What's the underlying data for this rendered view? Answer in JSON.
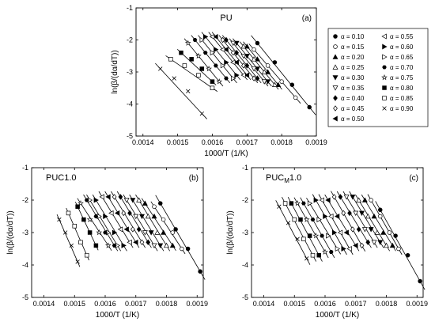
{
  "chart_data": [
    {
      "id": "a",
      "type": "scatter",
      "title": "PU",
      "panel_label": "(a)",
      "xlabel": "1000/T (1/K)",
      "ylabel": "ln(β/(dα/dT))",
      "xlim": [
        0.00138,
        0.0019
      ],
      "ylim": [
        -5,
        -1
      ],
      "xticks": [
        "0.0014",
        "0.0015",
        "0.0016",
        "0.0017",
        "0.0018",
        "0.0019"
      ],
      "yticks": [
        "-1",
        "-2",
        "-3",
        "-4",
        "-5"
      ],
      "legend_position": "right",
      "legend": [
        "α = 0.10",
        "α = 0.15",
        "α = 0.20",
        "α = 0.25",
        "α = 0.30",
        "α = 0.35",
        "α = 0.40",
        "α = 0.45",
        "α = 0.50",
        "α = 0.55",
        "α = 0.60",
        "α = 0.65",
        "α = 0.70",
        "α = 0.75",
        "α = 0.80",
        "α = 0.85",
        "α = 0.90"
      ],
      "series": [
        {
          "name": "α = 0.10",
          "marker": "circle-filled",
          "x": [
            0.00173,
            0.00178,
            0.00183,
            0.00188
          ],
          "y": [
            -2.1,
            -2.7,
            -3.4,
            -4.1
          ]
        },
        {
          "name": "α = 0.15",
          "marker": "circle-open",
          "x": [
            0.00172,
            0.00176,
            0.0018,
            0.00184
          ],
          "y": [
            -2.3,
            -2.8,
            -3.3,
            -3.8
          ]
        },
        {
          "name": "α = 0.20",
          "marker": "triangle-filled",
          "x": [
            0.0017,
            0.00173,
            0.00176,
            0.00179
          ],
          "y": [
            -2.2,
            -2.6,
            -3.0,
            -3.4
          ]
        },
        {
          "name": "α = 0.25",
          "marker": "triangle-open",
          "x": [
            0.00169,
            0.00172,
            0.00175,
            0.00178
          ],
          "y": [
            -2.2,
            -2.6,
            -3.0,
            -3.4
          ]
        },
        {
          "name": "α = 0.30",
          "marker": "tri-down-filled",
          "x": [
            0.00167,
            0.0017,
            0.00173,
            0.00176
          ],
          "y": [
            -2.1,
            -2.5,
            -2.9,
            -3.3
          ]
        },
        {
          "name": "α = 0.35",
          "marker": "tri-down-open",
          "x": [
            0.00166,
            0.00169,
            0.00172,
            0.00175
          ],
          "y": [
            -2.1,
            -2.5,
            -2.9,
            -3.3
          ]
        },
        {
          "name": "α = 0.40",
          "marker": "diamond-filled",
          "x": [
            0.00164,
            0.00167,
            0.0017,
            0.00173
          ],
          "y": [
            -2.0,
            -2.4,
            -2.8,
            -3.2
          ]
        },
        {
          "name": "α = 0.45",
          "marker": "diamond-open",
          "x": [
            0.00163,
            0.00166,
            0.00169,
            0.00172
          ],
          "y": [
            -2.0,
            -2.4,
            -2.8,
            -3.2
          ]
        },
        {
          "name": "α = 0.50",
          "marker": "tri-left-filled",
          "x": [
            0.00161,
            0.00164,
            0.00167,
            0.0017
          ],
          "y": [
            -1.9,
            -2.3,
            -2.7,
            -3.1
          ]
        },
        {
          "name": "α = 0.55",
          "marker": "tri-left-open",
          "x": [
            0.0016,
            0.00163,
            0.00166,
            0.00169
          ],
          "y": [
            -1.9,
            -2.3,
            -2.7,
            -3.1
          ]
        },
        {
          "name": "α = 0.60",
          "marker": "tri-right-filled",
          "x": [
            0.00158,
            0.00161,
            0.00164,
            0.00167
          ],
          "y": [
            -1.9,
            -2.3,
            -2.7,
            -3.1
          ]
        },
        {
          "name": "α = 0.65",
          "marker": "tri-right-open",
          "x": [
            0.00157,
            0.0016,
            0.00163,
            0.00166
          ],
          "y": [
            -2.0,
            -2.4,
            -2.8,
            -3.2
          ]
        },
        {
          "name": "α = 0.70",
          "marker": "hexagon-filled",
          "x": [
            0.00155,
            0.00158,
            0.00161,
            0.00164
          ],
          "y": [
            -2.0,
            -2.4,
            -2.8,
            -3.2
          ]
        },
        {
          "name": "α = 0.75",
          "marker": "star-open",
          "x": [
            0.00153,
            0.00156,
            0.00159,
            0.00162
          ],
          "y": [
            -2.1,
            -2.5,
            -2.9,
            -3.3
          ]
        },
        {
          "name": "α = 0.80",
          "marker": "square-filled",
          "x": [
            0.00151,
            0.00154,
            0.00157,
            0.0016
          ],
          "y": [
            -2.4,
            -2.6,
            -2.9,
            -3.3
          ]
        },
        {
          "name": "α = 0.85",
          "marker": "square-open",
          "x": [
            0.00148,
            0.00152,
            0.00156,
            0.0016
          ],
          "y": [
            -2.6,
            -2.8,
            -3.1,
            -3.5
          ]
        },
        {
          "name": "α = 0.90",
          "marker": "cross",
          "x": [
            0.00145,
            0.00149,
            0.00153,
            0.00157
          ],
          "y": [
            -2.9,
            -3.2,
            -3.6,
            -4.3
          ]
        }
      ]
    },
    {
      "id": "b",
      "type": "scatter",
      "title": "PUC1.0",
      "panel_label": "(b)",
      "xlabel": "1000/T (1/K)",
      "ylabel": "ln(β/(dα/dT))",
      "xlim": [
        0.00136,
        0.00192
      ],
      "ylim": [
        -5,
        -1
      ],
      "xticks": [
        "0.0014",
        "0.0015",
        "0.0016",
        "0.0017",
        "0.0018",
        "0.0019"
      ],
      "yticks": [
        "-1",
        "-2",
        "-3",
        "-4",
        "-5"
      ],
      "series": [
        {
          "name": "α = 0.10",
          "marker": "circle-filled",
          "x": [
            0.00178,
            0.00183,
            0.00187,
            0.00191
          ],
          "y": [
            -2.1,
            -2.9,
            -3.5,
            -4.2
          ]
        },
        {
          "name": "α = 0.15",
          "marker": "circle-open",
          "x": [
            0.00176,
            0.00179,
            0.00182,
            0.00185
          ],
          "y": [
            -2.2,
            -2.6,
            -3.0,
            -3.5
          ]
        },
        {
          "name": "α = 0.20",
          "marker": "triangle-filled",
          "x": [
            0.00173,
            0.00176,
            0.00179,
            0.00182
          ],
          "y": [
            -2.1,
            -2.5,
            -3.0,
            -3.4
          ]
        },
        {
          "name": "α = 0.25",
          "marker": "triangle-open",
          "x": [
            0.00171,
            0.00174,
            0.00177,
            0.0018
          ],
          "y": [
            -2.0,
            -2.5,
            -3.0,
            -3.4
          ]
        },
        {
          "name": "α = 0.30",
          "marker": "tri-down-filled",
          "x": [
            0.00169,
            0.00172,
            0.00175,
            0.00178
          ],
          "y": [
            -2.0,
            -2.5,
            -3.0,
            -3.4
          ]
        },
        {
          "name": "α = 0.35",
          "marker": "tri-down-open",
          "x": [
            0.00167,
            0.0017,
            0.00173,
            0.00176
          ],
          "y": [
            -2.0,
            -2.5,
            -3.0,
            -3.4
          ]
        },
        {
          "name": "α = 0.40",
          "marker": "diamond-filled",
          "x": [
            0.00165,
            0.00168,
            0.00171,
            0.00174
          ],
          "y": [
            -1.9,
            -2.4,
            -2.9,
            -3.3
          ]
        },
        {
          "name": "α = 0.45",
          "marker": "diamond-open",
          "x": [
            0.00163,
            0.00166,
            0.00169,
            0.00172
          ],
          "y": [
            -1.9,
            -2.4,
            -2.9,
            -3.3
          ]
        },
        {
          "name": "α = 0.50",
          "marker": "tri-left-filled",
          "x": [
            0.00161,
            0.00164,
            0.00167,
            0.0017
          ],
          "y": [
            -1.9,
            -2.4,
            -2.9,
            -3.3
          ]
        },
        {
          "name": "α = 0.55",
          "marker": "tri-left-open",
          "x": [
            0.00159,
            0.00162,
            0.00165,
            0.00168
          ],
          "y": [
            -1.9,
            -2.4,
            -2.9,
            -3.3
          ]
        },
        {
          "name": "α = 0.60",
          "marker": "tri-right-filled",
          "x": [
            0.00157,
            0.0016,
            0.00163,
            0.00166
          ],
          "y": [
            -2.0,
            -2.5,
            -3.0,
            -3.4
          ]
        },
        {
          "name": "α = 0.65",
          "marker": "tri-right-open",
          "x": [
            0.00155,
            0.00158,
            0.00161,
            0.00164
          ],
          "y": [
            -2.0,
            -2.5,
            -3.0,
            -3.4
          ]
        },
        {
          "name": "α = 0.70",
          "marker": "hexagon-filled",
          "x": [
            0.00154,
            0.00157,
            0.0016,
            0.00163
          ],
          "y": [
            -2.0,
            -2.5,
            -3.0,
            -3.4
          ]
        },
        {
          "name": "α = 0.75",
          "marker": "star-open",
          "x": [
            0.00152,
            0.00155,
            0.00158,
            0.00161
          ],
          "y": [
            -2.1,
            -2.6,
            -3.0,
            -3.4
          ]
        },
        {
          "name": "α = 0.80",
          "marker": "square-filled",
          "x": [
            0.00151,
            0.00153,
            0.00155,
            0.00157
          ],
          "y": [
            -2.2,
            -2.6,
            -3.0,
            -3.4
          ]
        },
        {
          "name": "α = 0.85",
          "marker": "square-open",
          "x": [
            0.00148,
            0.0015,
            0.00152,
            0.00154
          ],
          "y": [
            -2.4,
            -2.8,
            -3.3,
            -3.7
          ]
        },
        {
          "name": "α = 0.90",
          "marker": "cross",
          "x": [
            0.00145,
            0.00147,
            0.00149,
            0.00151
          ],
          "y": [
            -2.6,
            -3.0,
            -3.4,
            -3.9
          ]
        }
      ]
    },
    {
      "id": "c",
      "type": "scatter",
      "title_main": "PUC",
      "title_sub": "M",
      "title_rest": "1.0",
      "panel_label": "(c)",
      "xlabel": "1000/T (1/K)",
      "ylabel": "ln(β/(dα/dT))",
      "xlim": [
        0.00136,
        0.00192
      ],
      "ylim": [
        -5,
        -1
      ],
      "xticks": [
        "0.0014",
        "0.0015",
        "0.0016",
        "0.0017",
        "0.0018",
        "0.0019"
      ],
      "yticks": [
        "-1",
        "-2",
        "-3",
        "-4",
        "-5"
      ],
      "series": [
        {
          "name": "α = 0.10",
          "marker": "circle-filled",
          "x": [
            0.00178,
            0.00183,
            0.00187,
            0.00191
          ],
          "y": [
            -2.3,
            -3.1,
            -3.7,
            -4.5
          ]
        },
        {
          "name": "α = 0.15",
          "marker": "circle-open",
          "x": [
            0.00175,
            0.00178,
            0.00181,
            0.00184
          ],
          "y": [
            -2.0,
            -2.5,
            -3.0,
            -3.5
          ]
        },
        {
          "name": "α = 0.20",
          "marker": "triangle-filled",
          "x": [
            0.00173,
            0.00176,
            0.00179,
            0.00182
          ],
          "y": [
            -2.0,
            -2.5,
            -3.0,
            -3.4
          ]
        },
        {
          "name": "α = 0.25",
          "marker": "triangle-open",
          "x": [
            0.00171,
            0.00174,
            0.00177,
            0.0018
          ],
          "y": [
            -2.0,
            -2.5,
            -3.0,
            -3.4
          ]
        },
        {
          "name": "α = 0.30",
          "marker": "tri-down-filled",
          "x": [
            0.00169,
            0.00172,
            0.00175,
            0.00178
          ],
          "y": [
            -1.9,
            -2.4,
            -2.9,
            -3.3
          ]
        },
        {
          "name": "α = 0.35",
          "marker": "tri-down-open",
          "x": [
            0.00167,
            0.0017,
            0.00173,
            0.00176
          ],
          "y": [
            -1.9,
            -2.4,
            -2.9,
            -3.3
          ]
        },
        {
          "name": "α = 0.40",
          "marker": "diamond-filled",
          "x": [
            0.00165,
            0.00168,
            0.00171,
            0.00174
          ],
          "y": [
            -1.9,
            -2.4,
            -2.9,
            -3.3
          ]
        },
        {
          "name": "α = 0.45",
          "marker": "diamond-open",
          "x": [
            0.00163,
            0.00166,
            0.00169,
            0.00172
          ],
          "y": [
            -1.9,
            -2.4,
            -2.9,
            -3.4
          ]
        },
        {
          "name": "α = 0.50",
          "marker": "tri-left-filled",
          "x": [
            0.00161,
            0.00164,
            0.00167,
            0.0017
          ],
          "y": [
            -2.0,
            -2.5,
            -3.0,
            -3.4
          ]
        },
        {
          "name": "α = 0.55",
          "marker": "tri-left-open",
          "x": [
            0.00159,
            0.00162,
            0.00165,
            0.00168
          ],
          "y": [
            -2.0,
            -2.5,
            -3.0,
            -3.5
          ]
        },
        {
          "name": "α = 0.60",
          "marker": "tri-right-filled",
          "x": [
            0.00157,
            0.0016,
            0.00163,
            0.00166
          ],
          "y": [
            -2.0,
            -2.5,
            -3.0,
            -3.5
          ]
        },
        {
          "name": "α = 0.65",
          "marker": "tri-right-open",
          "x": [
            0.00155,
            0.00158,
            0.00161,
            0.00164
          ],
          "y": [
            -2.1,
            -2.6,
            -3.1,
            -3.5
          ]
        },
        {
          "name": "α = 0.70",
          "marker": "hexagon-filled",
          "x": [
            0.00153,
            0.00156,
            0.00159,
            0.00162
          ],
          "y": [
            -2.1,
            -2.6,
            -3.1,
            -3.6
          ]
        },
        {
          "name": "α = 0.75",
          "marker": "star-open",
          "x": [
            0.00151,
            0.00154,
            0.00157,
            0.0016
          ],
          "y": [
            -2.1,
            -2.6,
            -3.1,
            -3.6
          ]
        },
        {
          "name": "α = 0.80",
          "marker": "square-filled",
          "x": [
            0.00149,
            0.00152,
            0.00155,
            0.00158
          ],
          "y": [
            -2.1,
            -2.6,
            -3.1,
            -3.7
          ]
        },
        {
          "name": "α = 0.85",
          "marker": "square-open",
          "x": [
            0.00147,
            0.0015,
            0.00153,
            0.00156
          ],
          "y": [
            -2.1,
            -2.6,
            -3.2,
            -3.7
          ]
        },
        {
          "name": "α = 0.90",
          "marker": "cross",
          "x": [
            0.00145,
            0.00148,
            0.00151,
            0.00154
          ],
          "y": [
            -2.2,
            -2.7,
            -3.2,
            -3.8
          ]
        }
      ]
    }
  ]
}
